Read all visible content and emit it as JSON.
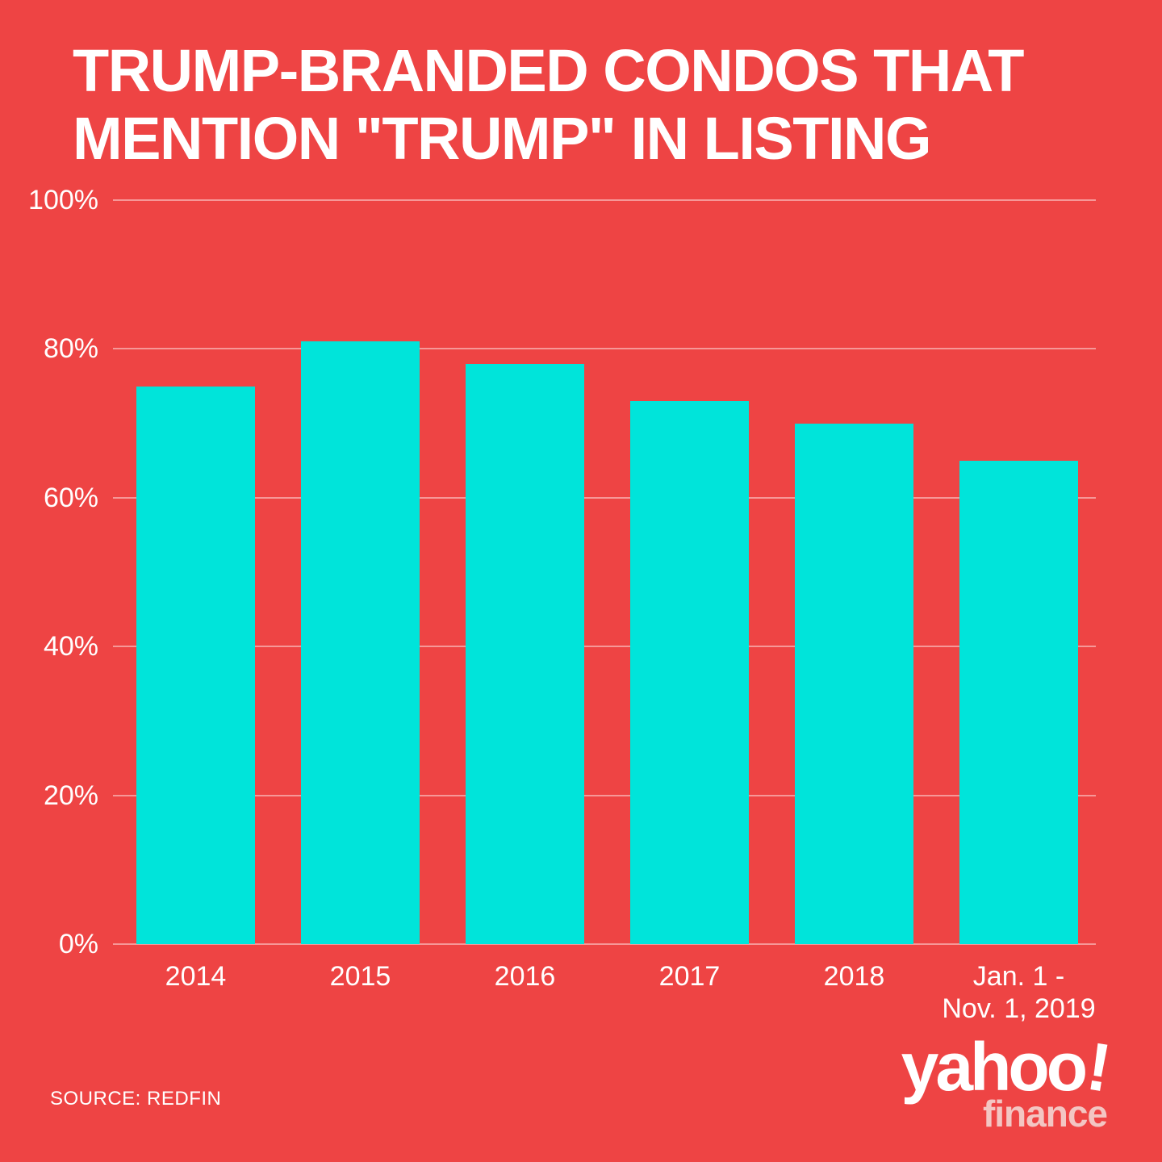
{
  "title": {
    "line1": "TRUMP-BRANDED CONDOS THAT",
    "line2": "MENTION \"TRUMP\" IN LISTING"
  },
  "source": "SOURCE: REDFIN",
  "logo": {
    "main": "yahoo",
    "bang": "!",
    "sub": "finance"
  },
  "colors": {
    "background": "#ee4444",
    "bar": "#00e4da",
    "gridline": "#f5a0a0",
    "text": "#ffffff",
    "finance_pink": "#f3c6c3"
  },
  "chart_data": {
    "type": "bar",
    "title": "TRUMP-BRANDED CONDOS THAT MENTION \"TRUMP\" IN LISTING",
    "categories": [
      "2014",
      "2015",
      "2016",
      "2017",
      "2018",
      "Jan. 1 -\nNov. 1, 2019"
    ],
    "values": [
      75,
      81,
      78,
      73,
      70,
      65
    ],
    "xlabel": "",
    "ylabel": "",
    "ylim": [
      0,
      100
    ],
    "yticks": [
      0,
      20,
      40,
      60,
      80,
      100
    ],
    "ytick_labels": [
      "0%",
      "20%",
      "40%",
      "60%",
      "80%",
      "100%"
    ],
    "grid": true,
    "legend": false,
    "bar_color": "#00e4da"
  }
}
